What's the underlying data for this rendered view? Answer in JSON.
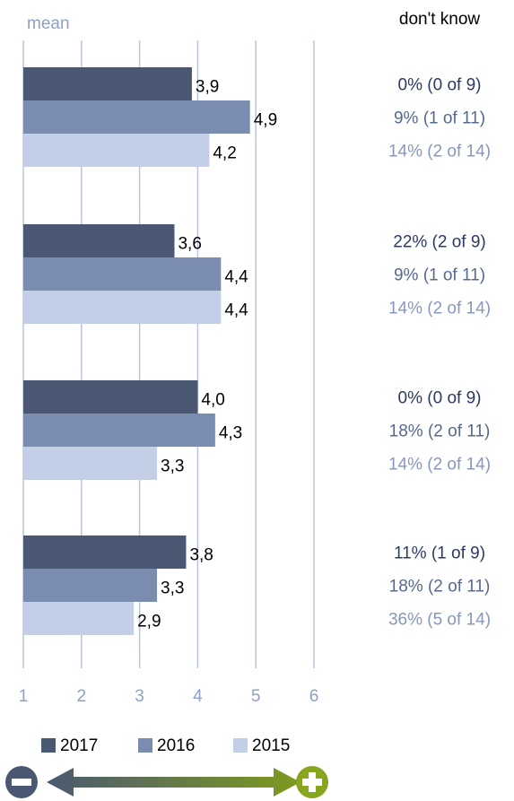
{
  "chart_data": {
    "type": "bar",
    "orientation": "horizontal",
    "axis_label": "mean",
    "dont_know_label": "don't know",
    "categories": [
      null,
      null,
      null,
      null
    ],
    "series": [
      {
        "name": "2017",
        "color": "#4b5873",
        "values": [
          3.9,
          3.6,
          4.0,
          3.8
        ],
        "value_labels": [
          "3,9",
          "3,6",
          "4,0",
          "3,8"
        ],
        "dont_know": [
          "0% (0 of 9)",
          "22% (2 of 9)",
          "0% (0 of 9)",
          "11% (1 of 9)"
        ],
        "text_color": "#2b3a63"
      },
      {
        "name": "2016",
        "color": "#7a8db0",
        "values": [
          4.9,
          4.4,
          4.3,
          3.3
        ],
        "value_labels": [
          "4,9",
          "4,4",
          "4,3",
          "3,3"
        ],
        "dont_know": [
          "9% (1 of 11)",
          "9% (1 of 11)",
          "18% (2 of 11)",
          "18% (2 of 11)"
        ],
        "text_color": "#56698f"
      },
      {
        "name": "2015",
        "color": "#c3cfe7",
        "values": [
          4.2,
          4.4,
          3.3,
          2.9
        ],
        "value_labels": [
          "4,2",
          "4,4",
          "3,3",
          "2,9"
        ],
        "dont_know": [
          "14% (2 of 14)",
          "14% (2 of 14)",
          "14% (2 of 14)",
          "36% (5 of 14)"
        ],
        "text_color": "#8798bd"
      }
    ],
    "xlim": [
      1,
      6
    ],
    "xticks": [
      1,
      2,
      3,
      4,
      5,
      6
    ],
    "grid": true
  }
}
